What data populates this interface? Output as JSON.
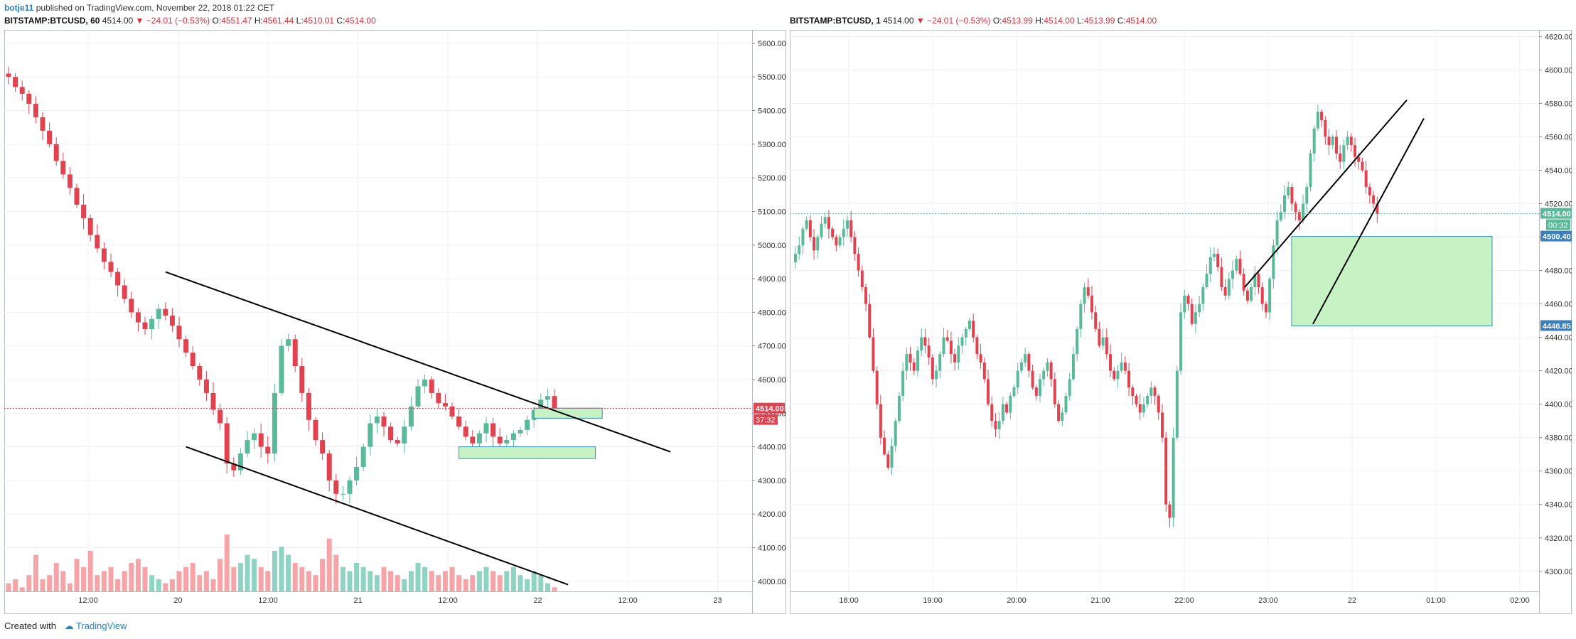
{
  "publication": {
    "author": "botje11",
    "text": "published on TradingView.com, November 22, 2018 01:22 CET"
  },
  "footer": {
    "prefix": "Created with",
    "brand": "TradingView"
  },
  "colors": {
    "up": "#5ab999",
    "down": "#e0434f",
    "vol_up": "#8fd3c3",
    "vol_down": "#f5a4a8",
    "box_fill": "#c7f2c4",
    "box_stroke": "#2c8fb8"
  },
  "chart_data": [
    {
      "type": "candlestick",
      "header": {
        "symbol": "BITSTAMP:BTCUSD, 60",
        "last": "4514.00",
        "change": "−24.01 (−0.53%)",
        "o_label": "O:",
        "o": "4551.47",
        "h_label": "H:",
        "h": "4561.44",
        "l_label": "L:",
        "l": "4510.01",
        "c_label": "C:",
        "c": "4514.00"
      },
      "ylim": [
        3970,
        5640
      ],
      "yticks": [
        "4000.00",
        "4100.00",
        "4200.00",
        "4300.00",
        "4400.00",
        "4500.00",
        "4600.00",
        "4700.00",
        "4800.00",
        "4900.00",
        "5000.00",
        "5100.00",
        "5200.00",
        "5300.00",
        "5400.00",
        "5500.00",
        "5600.00"
      ],
      "xticks": [
        "12:00",
        "20",
        "12:00",
        "21",
        "12:00",
        "22",
        "12:00",
        "23"
      ],
      "price_label": "4514.00",
      "countdown_label": "37:32",
      "price_value": 4514,
      "close_path": [
        5500,
        5470,
        5450,
        5420,
        5380,
        5340,
        5300,
        5250,
        5210,
        5170,
        5120,
        5080,
        5030,
        4990,
        4950,
        4920,
        4880,
        4840,
        4800,
        4770,
        4750,
        4780,
        4810,
        4790,
        4760,
        4720,
        4680,
        4640,
        4600,
        4560,
        4510,
        4470,
        4350,
        4330,
        4380,
        4420,
        4440,
        4400,
        4380,
        4560,
        4700,
        4720,
        4640,
        4560,
        4480,
        4420,
        4380,
        4300,
        4260,
        4260,
        4300,
        4340,
        4400,
        4470,
        4490,
        4460,
        4420,
        4410,
        4460,
        4520,
        4580,
        4600,
        4560,
        4530,
        4520,
        4490,
        4460,
        4430,
        4410,
        4440,
        4470,
        4430,
        4410,
        4420,
        4440,
        4450,
        4480,
        4510,
        4540,
        4551,
        4514
      ],
      "volume_path": [
        2,
        3,
        1,
        4,
        9,
        3,
        4,
        7,
        5,
        2,
        8,
        6,
        10,
        4,
        5,
        6,
        3,
        5,
        7,
        8,
        6,
        4,
        3,
        2,
        3,
        5,
        6,
        7,
        4,
        5,
        3,
        8,
        14,
        6,
        7,
        9,
        8,
        6,
        5,
        10,
        11,
        9,
        7,
        6,
        5,
        4,
        8,
        13,
        9,
        6,
        5,
        7,
        6,
        5,
        4,
        6,
        5,
        4,
        3,
        5,
        7,
        6,
        5,
        4,
        5,
        6,
        4,
        3,
        4,
        5,
        6,
        5,
        4,
        5,
        6,
        4,
        3,
        5,
        4,
        2,
        1
      ],
      "trendlines": [
        {
          "x1_index": 23,
          "y1": 4920,
          "x2_index": 97,
          "y2": 4385
        },
        {
          "x1_index": 26,
          "y1": 4400,
          "x2_index": 82,
          "y2": 3990
        }
      ],
      "boxes": [
        {
          "x1_index": 77,
          "x2_index": 87,
          "y_low": 4485,
          "y_high": 4515
        },
        {
          "x1_index": 66,
          "x2_index": 86,
          "y_low": 4365,
          "y_high": 4400
        }
      ]
    },
    {
      "type": "candlestick",
      "header": {
        "symbol": "BITSTAMP:BTCUSD, 1",
        "last": "4514.00",
        "change": "−24.01 (−0.53%)",
        "o_label": "O:",
        "o": "4513.99",
        "h_label": "H:",
        "h": "4514.00",
        "l_label": "L:",
        "l": "4513.99",
        "c_label": "C:",
        "c": "4514.00"
      },
      "ylim": [
        4288,
        4624
      ],
      "yticks": [
        "4300.00",
        "4320.00",
        "4340.00",
        "4360.00",
        "4380.00",
        "4400.00",
        "4420.00",
        "4440.00",
        "4460.00",
        "4480.00",
        "4500.00",
        "4520.00",
        "4540.00",
        "4560.00",
        "4580.00",
        "4600.00",
        "4620.00"
      ],
      "xticks": [
        "18:00",
        "19:00",
        "20:00",
        "21:00",
        "22:00",
        "23:00",
        "22",
        "01:00",
        "02:00"
      ],
      "price_label": "4514.00",
      "countdown_label": "00:32",
      "price_value": 4514,
      "zone_labels": {
        "top": "4500.40",
        "bottom": "4446.85"
      },
      "zone": {
        "x_start_hours": 5.85,
        "x_end_hours": 8.2,
        "y_low": 4446.85,
        "y_high": 4500.4
      },
      "close_path": [
        4490,
        4495,
        4505,
        4510,
        4500,
        4492,
        4500,
        4508,
        4512,
        4505,
        4500,
        4495,
        4500,
        4505,
        4510,
        4500,
        4490,
        4480,
        4470,
        4460,
        4440,
        4420,
        4400,
        4380,
        4370,
        4362,
        4375,
        4390,
        4405,
        4420,
        4430,
        4425,
        4420,
        4432,
        4440,
        4435,
        4428,
        4415,
        4420,
        4430,
        4440,
        4438,
        4430,
        4425,
        4435,
        4440,
        4445,
        4450,
        4440,
        4430,
        4425,
        4415,
        4400,
        4390,
        4385,
        4390,
        4400,
        4395,
        4405,
        4410,
        4420,
        4425,
        4430,
        4420,
        4410,
        4405,
        4415,
        4420,
        4425,
        4415,
        4400,
        4390,
        4395,
        4405,
        4415,
        4430,
        4445,
        4460,
        4470,
        4465,
        4455,
        4445,
        4435,
        4440,
        4430,
        4420,
        4415,
        4420,
        4425,
        4420,
        4410,
        4405,
        4400,
        4395,
        4400,
        4405,
        4410,
        4405,
        4395,
        4380,
        4340,
        4332,
        4380,
        4420,
        4455,
        4465,
        4460,
        4448,
        4455,
        4460,
        4470,
        4478,
        4488,
        4490,
        4482,
        4470,
        4465,
        4475,
        4480,
        4487,
        4478,
        4468,
        4462,
        4470,
        4478,
        4470,
        4460,
        4455,
        4475,
        4495,
        4510,
        4515,
        4525,
        4530,
        4520,
        4515,
        4510,
        4520,
        4530,
        4550,
        4565,
        4575,
        4570,
        4560,
        4555,
        4560,
        4550,
        4545,
        4555,
        4560,
        4555,
        4548,
        4545,
        4540,
        4530,
        4525,
        4520,
        4514
      ],
      "hours_span": [
        0,
        8.6
      ],
      "trendlines": [
        {
          "x1_hours": 5.3,
          "y1": 4470,
          "x2_hours": 7.2,
          "y2": 4582
        },
        {
          "x1_hours": 6.1,
          "y1": 4448,
          "x2_hours": 7.4,
          "y2": 4571
        }
      ]
    }
  ]
}
